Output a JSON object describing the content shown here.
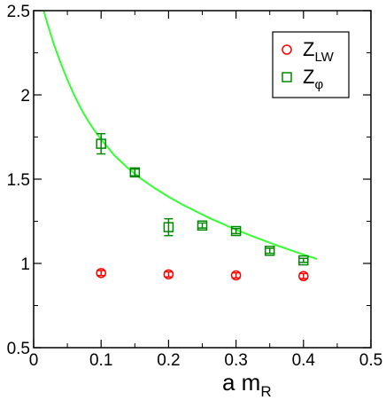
{
  "chart_data": {
    "type": "scatter",
    "xlabel": "a m",
    "xlabel_sub": "R",
    "ylabel": "",
    "xlim": [
      0,
      0.5
    ],
    "ylim": [
      0.5,
      2.5
    ],
    "x_ticks": [
      "0",
      "0.1",
      "0.2",
      "0.3",
      "0.4",
      "0.5"
    ],
    "y_ticks": [
      "0.5",
      "1",
      "1.5",
      "2",
      "2.5"
    ],
    "legend_position": "top-right",
    "series": [
      {
        "name": "Z",
        "name_sub": "LW",
        "marker": "circle",
        "color": "#ff0000",
        "points": [
          {
            "x": 0.1,
            "y": 0.943,
            "err": 0.015
          },
          {
            "x": 0.2,
            "y": 0.935,
            "err": 0.015
          },
          {
            "x": 0.3,
            "y": 0.929,
            "err": 0.015
          },
          {
            "x": 0.4,
            "y": 0.925,
            "err": 0.015
          }
        ]
      },
      {
        "name": "Z",
        "name_sub": "φ",
        "marker": "square",
        "color": "#008800",
        "points": [
          {
            "x": 0.1,
            "y": 1.71,
            "err": 0.06
          },
          {
            "x": 0.15,
            "y": 1.54,
            "err": 0.02
          },
          {
            "x": 0.2,
            "y": 1.215,
            "err": 0.05
          },
          {
            "x": 0.25,
            "y": 1.225,
            "err": 0.015
          },
          {
            "x": 0.3,
            "y": 1.192,
            "err": 0.015
          },
          {
            "x": 0.35,
            "y": 1.075,
            "err": 0.015
          },
          {
            "x": 0.4,
            "y": 1.018,
            "err": 0.012
          }
        ]
      }
    ],
    "fit_curve": {
      "color": "#33ff33",
      "points": [
        [
          0.015,
          2.5
        ],
        [
          0.02,
          2.43
        ],
        [
          0.03,
          2.3
        ],
        [
          0.04,
          2.19
        ],
        [
          0.05,
          2.09
        ],
        [
          0.06,
          2.0
        ],
        [
          0.07,
          1.92
        ],
        [
          0.08,
          1.85
        ],
        [
          0.09,
          1.79
        ],
        [
          0.1,
          1.735
        ],
        [
          0.12,
          1.64
        ],
        [
          0.14,
          1.565
        ],
        [
          0.16,
          1.5
        ],
        [
          0.18,
          1.445
        ],
        [
          0.2,
          1.395
        ],
        [
          0.22,
          1.35
        ],
        [
          0.24,
          1.31
        ],
        [
          0.26,
          1.27
        ],
        [
          0.28,
          1.235
        ],
        [
          0.3,
          1.2
        ],
        [
          0.32,
          1.168
        ],
        [
          0.34,
          1.138
        ],
        [
          0.36,
          1.108
        ],
        [
          0.38,
          1.08
        ],
        [
          0.4,
          1.052
        ],
        [
          0.42,
          1.027
        ]
      ]
    }
  }
}
